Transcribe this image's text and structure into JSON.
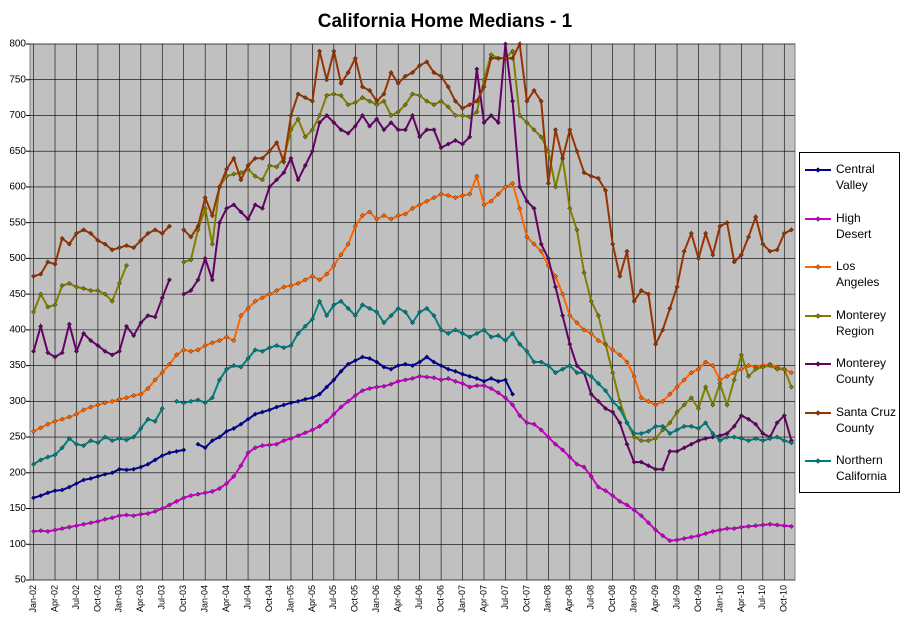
{
  "chart_data": {
    "type": "line",
    "title": "California Home Medians - 1",
    "categories": [
      "Jan-02",
      null,
      null,
      "Apr-02",
      null,
      null,
      "Jul-02",
      null,
      null,
      "Oct-02",
      null,
      null,
      "Jan-03",
      null,
      null,
      "Apr-03",
      null,
      null,
      "Jul-03",
      null,
      null,
      "Oct-03",
      null,
      null,
      "Jan-04",
      null,
      null,
      "Apr-04",
      null,
      null,
      "Jul-04",
      null,
      null,
      "Oct-04",
      null,
      null,
      "Jan-05",
      null,
      null,
      "Apr-05",
      null,
      null,
      "Jul-05",
      null,
      null,
      "Oct-05",
      null,
      null,
      "Jan-06",
      null,
      null,
      "Apr-06",
      null,
      null,
      "Jul-06",
      null,
      null,
      "Oct-06",
      null,
      null,
      "Jan-07",
      null,
      null,
      "Apr-07",
      null,
      null,
      "Jul-07",
      null,
      null,
      "Oct-07",
      null,
      null,
      "Jan-08",
      null,
      null,
      "Apr-08",
      null,
      null,
      "Jul-08",
      null,
      null,
      "Oct-08",
      null,
      null,
      "Jan-09",
      null,
      null,
      "Apr-09",
      null,
      null,
      "Jul-09",
      null,
      null,
      "Oct-09",
      null,
      null,
      "Jan-10",
      null,
      null,
      "Apr-10",
      null,
      null,
      "Jul-10",
      null,
      null,
      "Oct-10",
      null
    ],
    "ylim": [
      50,
      800
    ],
    "yticks": [
      50,
      100,
      150,
      200,
      250,
      300,
      350,
      400,
      450,
      500,
      550,
      600,
      650,
      700,
      750,
      800
    ],
    "grid": true,
    "legend": "right",
    "series": [
      {
        "name": "Central Valley",
        "color": "#000099",
        "values": [
          165,
          168,
          172,
          175,
          176,
          180,
          185,
          190,
          192,
          195,
          198,
          200,
          205,
          204,
          205,
          208,
          212,
          218,
          224,
          228,
          230,
          232,
          null,
          240,
          235,
          245,
          250,
          258,
          262,
          268,
          275,
          282,
          285,
          288,
          292,
          295,
          298,
          300,
          303,
          305,
          310,
          320,
          330,
          342,
          352,
          357,
          362,
          360,
          355,
          348,
          345,
          350,
          352,
          350,
          355,
          362,
          355,
          350,
          345,
          342,
          338,
          335,
          332,
          328,
          332,
          328,
          330,
          310,
          null,
          null,
          null,
          null,
          null,
          null,
          null,
          null,
          null,
          null,
          null,
          null,
          null,
          null,
          null,
          null,
          null,
          null,
          null,
          null,
          null,
          null,
          null,
          null,
          null,
          null,
          null,
          null,
          null,
          null,
          null,
          null,
          null,
          null,
          null,
          null,
          null,
          null,
          null
        ]
      },
      {
        "name": "High Desert",
        "color": "#cc00cc",
        "values": [
          118,
          119,
          118,
          120,
          122,
          124,
          126,
          128,
          130,
          132,
          135,
          137,
          140,
          141,
          140,
          142,
          143,
          146,
          150,
          155,
          160,
          165,
          168,
          170,
          172,
          174,
          178,
          185,
          195,
          210,
          228,
          235,
          238,
          239,
          240,
          245,
          248,
          252,
          256,
          260,
          265,
          272,
          282,
          292,
          300,
          308,
          315,
          318,
          320,
          321,
          324,
          328,
          330,
          332,
          335,
          334,
          333,
          330,
          332,
          328,
          325,
          320,
          322,
          322,
          318,
          312,
          305,
          295,
          280,
          270,
          268,
          260,
          250,
          240,
          232,
          222,
          212,
          208,
          195,
          180,
          175,
          168,
          160,
          155,
          148,
          140,
          130,
          120,
          112,
          105,
          106,
          108,
          110,
          112,
          115,
          118,
          120,
          122,
          122,
          124,
          125,
          126,
          127,
          128,
          127,
          126,
          125
        ]
      },
      {
        "name": "Los Angeles",
        "color": "#ff6600",
        "values": [
          258,
          263,
          268,
          272,
          275,
          278,
          282,
          288,
          292,
          295,
          298,
          300,
          303,
          305,
          308,
          310,
          318,
          330,
          340,
          352,
          365,
          372,
          370,
          372,
          378,
          382,
          385,
          390,
          385,
          420,
          430,
          440,
          445,
          450,
          455,
          460,
          462,
          465,
          470,
          475,
          470,
          478,
          490,
          505,
          520,
          545,
          560,
          565,
          555,
          560,
          555,
          560,
          562,
          570,
          575,
          580,
          585,
          590,
          588,
          585,
          588,
          590,
          615,
          575,
          580,
          590,
          600,
          605,
          570,
          530,
          520,
          510,
          490,
          475,
          450,
          420,
          410,
          400,
          395,
          385,
          380,
          372,
          365,
          355,
          335,
          305,
          300,
          295,
          300,
          310,
          320,
          330,
          340,
          345,
          355,
          350,
          330,
          335,
          340,
          345,
          350,
          348,
          350,
          352,
          348,
          345,
          340
        ]
      },
      {
        "name": "Monterey Region",
        "color": "#808000",
        "values": [
          425,
          450,
          432,
          435,
          462,
          465,
          460,
          458,
          455,
          455,
          450,
          440,
          465,
          490,
          null,
          null,
          null,
          null,
          null,
          null,
          null,
          495,
          498,
          540,
          570,
          520,
          600,
          615,
          618,
          620,
          625,
          615,
          610,
          630,
          628,
          640,
          680,
          695,
          670,
          680,
          700,
          728,
          730,
          728,
          715,
          718,
          725,
          720,
          715,
          720,
          700,
          705,
          715,
          730,
          728,
          720,
          715,
          720,
          712,
          700,
          700,
          698,
          705,
          750,
          785,
          780,
          780,
          790,
          700,
          690,
          680,
          670,
          650,
          600,
          640,
          570,
          540,
          480,
          440,
          420,
          380,
          340,
          300,
          270,
          250,
          245,
          245,
          248,
          260,
          270,
          285,
          295,
          305,
          290,
          320,
          295,
          325,
          295,
          330,
          365,
          335,
          345,
          348,
          350,
          345,
          345,
          320
        ]
      },
      {
        "name": "Monterey County",
        "color": "#660066",
        "values": [
          370,
          405,
          368,
          362,
          368,
          408,
          370,
          395,
          385,
          378,
          370,
          365,
          370,
          405,
          392,
          410,
          420,
          418,
          445,
          470,
          null,
          450,
          455,
          470,
          500,
          470,
          550,
          570,
          575,
          565,
          555,
          575,
          570,
          600,
          610,
          620,
          640,
          610,
          630,
          650,
          690,
          700,
          690,
          680,
          675,
          685,
          700,
          685,
          695,
          680,
          690,
          680,
          680,
          700,
          670,
          680,
          680,
          655,
          660,
          665,
          660,
          670,
          765,
          690,
          700,
          690,
          800,
          720,
          600,
          580,
          570,
          520,
          500,
          460,
          420,
          380,
          350,
          340,
          310,
          300,
          290,
          285,
          270,
          240,
          215,
          215,
          210,
          205,
          205,
          230,
          230,
          235,
          240,
          245,
          248,
          250,
          252,
          255,
          265,
          280,
          275,
          268,
          255,
          250,
          270,
          280,
          245
        ]
      },
      {
        "name": "Santa Cruz County",
        "color": "#993300",
        "values": [
          475,
          478,
          495,
          492,
          528,
          520,
          535,
          540,
          535,
          525,
          520,
          512,
          515,
          518,
          515,
          525,
          535,
          540,
          535,
          545,
          null,
          540,
          530,
          545,
          585,
          560,
          600,
          625,
          640,
          610,
          630,
          640,
          640,
          650,
          662,
          635,
          700,
          730,
          725,
          720,
          790,
          750,
          790,
          745,
          760,
          780,
          740,
          735,
          720,
          730,
          760,
          745,
          755,
          760,
          770,
          775,
          760,
          755,
          740,
          720,
          710,
          715,
          720,
          740,
          780,
          780,
          780,
          780,
          800,
          720,
          735,
          720,
          605,
          680,
          640,
          680,
          650,
          620,
          615,
          612,
          595,
          520,
          475,
          510,
          440,
          455,
          450,
          380,
          400,
          430,
          460,
          510,
          535,
          500,
          535,
          505,
          545,
          550,
          495,
          505,
          530,
          558,
          520,
          510,
          512,
          535,
          540
        ]
      },
      {
        "name": "Northern California",
        "color": "#008080",
        "values": [
          212,
          218,
          222,
          225,
          235,
          248,
          240,
          238,
          245,
          242,
          250,
          245,
          248,
          246,
          250,
          262,
          275,
          272,
          290,
          null,
          300,
          298,
          300,
          302,
          298,
          305,
          330,
          345,
          350,
          348,
          360,
          372,
          370,
          375,
          378,
          375,
          378,
          395,
          405,
          415,
          440,
          420,
          435,
          440,
          430,
          420,
          435,
          430,
          425,
          410,
          420,
          430,
          425,
          410,
          425,
          430,
          420,
          400,
          395,
          400,
          395,
          390,
          395,
          400,
          390,
          392,
          385,
          395,
          380,
          370,
          355,
          355,
          350,
          340,
          345,
          350,
          340,
          340,
          335,
          325,
          315,
          300,
          290,
          270,
          255,
          255,
          258,
          265,
          265,
          255,
          260,
          265,
          265,
          262,
          270,
          255,
          245,
          250,
          250,
          248,
          245,
          248,
          245,
          248,
          250,
          245,
          242
        ]
      }
    ]
  }
}
